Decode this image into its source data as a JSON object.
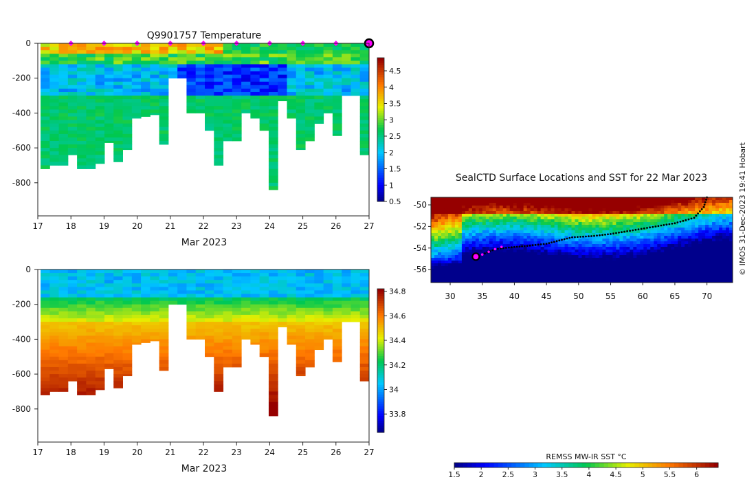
{
  "credit": "© IMOS 31-Dec-2023 19:41 Hobart",
  "chart_data": [
    {
      "type": "heatmap",
      "title": "Q9901757  Temperature",
      "xlabel": "Mar 2023",
      "ylabel": "",
      "x_ticks": [
        "17",
        "18",
        "19",
        "20",
        "21",
        "22",
        "23",
        "24",
        "25",
        "26",
        "27"
      ],
      "y_ticks": [
        "0",
        "-200",
        "-400",
        "-600",
        "-800"
      ],
      "xlim": [
        17,
        27
      ],
      "ylim": [
        -990,
        0
      ],
      "colorbar_ticks": [
        "0.5",
        "1",
        "1.5",
        "2",
        "2.5",
        "3",
        "3.5",
        "4",
        "4.5"
      ],
      "colorbar_range": [
        0.5,
        4.9
      ],
      "colormap": "jet",
      "surface_markers_day": [
        18,
        19,
        20,
        21,
        22,
        23,
        24,
        25,
        26
      ],
      "latest_marker_day": 27,
      "marker_color": "#ff00ff",
      "profiles_max_depth": [
        -720,
        -700,
        -700,
        -640,
        -720,
        -720,
        -690,
        -570,
        -680,
        -610,
        -430,
        -420,
        -410,
        -580,
        -200,
        -200,
        -400,
        -400,
        -500,
        -700,
        -560,
        -560,
        -400,
        -430,
        -500,
        -840,
        -330,
        -430,
        -610,
        -560,
        -460,
        -400,
        -530,
        -300,
        -300,
        -640
      ],
      "layers": [
        {
          "depth_range": [
            0,
            -100
          ],
          "temperature_range": [
            3.0,
            4.5
          ]
        },
        {
          "depth_range": [
            -100,
            -300
          ],
          "temperature_range": [
            0.5,
            2.0
          ]
        },
        {
          "depth_range": [
            -300,
            -840
          ],
          "temperature_range": [
            2.0,
            2.5
          ]
        }
      ]
    },
    {
      "type": "heatmap",
      "title": "",
      "xlabel": "Mar 2023",
      "ylabel": "",
      "x_ticks": [
        "17",
        "18",
        "19",
        "20",
        "21",
        "22",
        "23",
        "24",
        "25",
        "26",
        "27"
      ],
      "y_ticks": [
        "0",
        "-200",
        "-400",
        "-600",
        "-800"
      ],
      "xlim": [
        17,
        27
      ],
      "ylim": [
        -990,
        0
      ],
      "colorbar_ticks": [
        "33.8",
        "34",
        "34.2",
        "34.4",
        "34.6",
        "34.8"
      ],
      "colorbar_range": [
        33.65,
        34.82
      ],
      "colormap": "jet",
      "profiles_max_depth": [
        -720,
        -700,
        -700,
        -640,
        -720,
        -720,
        -690,
        -570,
        -680,
        -610,
        -430,
        -420,
        -410,
        -580,
        -200,
        -200,
        -400,
        -400,
        -500,
        -700,
        -560,
        -560,
        -400,
        -430,
        -500,
        -840,
        -330,
        -430,
        -610,
        -560,
        -460,
        -400,
        -530,
        -300,
        -300,
        -640
      ],
      "layers": [
        {
          "depth_range": [
            0,
            -150
          ],
          "salinity_range": [
            33.9,
            34.0
          ]
        },
        {
          "depth_range": [
            -150,
            -300
          ],
          "salinity_range": [
            34.1,
            34.3
          ]
        },
        {
          "depth_range": [
            -300,
            -840
          ],
          "salinity_range": [
            34.4,
            34.8
          ]
        }
      ]
    },
    {
      "type": "heatmap",
      "title": "SealCTD Surface Locations and SST for 22 Mar 2023",
      "xlabel": "",
      "ylabel": "",
      "x_ticks": [
        "30",
        "35",
        "40",
        "45",
        "50",
        "55",
        "60",
        "65",
        "70"
      ],
      "y_ticks": [
        "-50",
        "-52",
        "-54",
        "-56"
      ],
      "xlim": [
        27,
        74
      ],
      "ylim": [
        -57.2,
        -49.3
      ],
      "colorbar_label": "REMSS MW-IR SST °C",
      "colorbar_ticks": [
        "1.5",
        "2",
        "2.5",
        "3",
        "3.5",
        "4",
        "4.5",
        "5",
        "5.5",
        "6"
      ],
      "colorbar_range": [
        1.5,
        6.4
      ],
      "colormap": "jet",
      "track": [
        [
          70,
          -49.3
        ],
        [
          69.5,
          -50.2
        ],
        [
          68,
          -51.2
        ],
        [
          65,
          -51.7
        ],
        [
          62,
          -52.0
        ],
        [
          58,
          -52.4
        ],
        [
          55,
          -52.7
        ],
        [
          52,
          -52.9
        ],
        [
          49,
          -53.0
        ],
        [
          47,
          -53.3
        ],
        [
          45,
          -53.6
        ],
        [
          42,
          -53.8
        ],
        [
          40,
          -53.9
        ],
        [
          37,
          -54.1
        ],
        [
          35,
          -54.6
        ],
        [
          34,
          -54.8
        ]
      ],
      "recent_positions": [
        [
          38,
          -53.9
        ],
        [
          37,
          -54.1
        ],
        [
          36,
          -54.35
        ],
        [
          35,
          -54.6
        ]
      ],
      "current_position": [
        34,
        -54.8
      ],
      "track_color": "#000000",
      "marker_color": "#ff00ff"
    }
  ]
}
